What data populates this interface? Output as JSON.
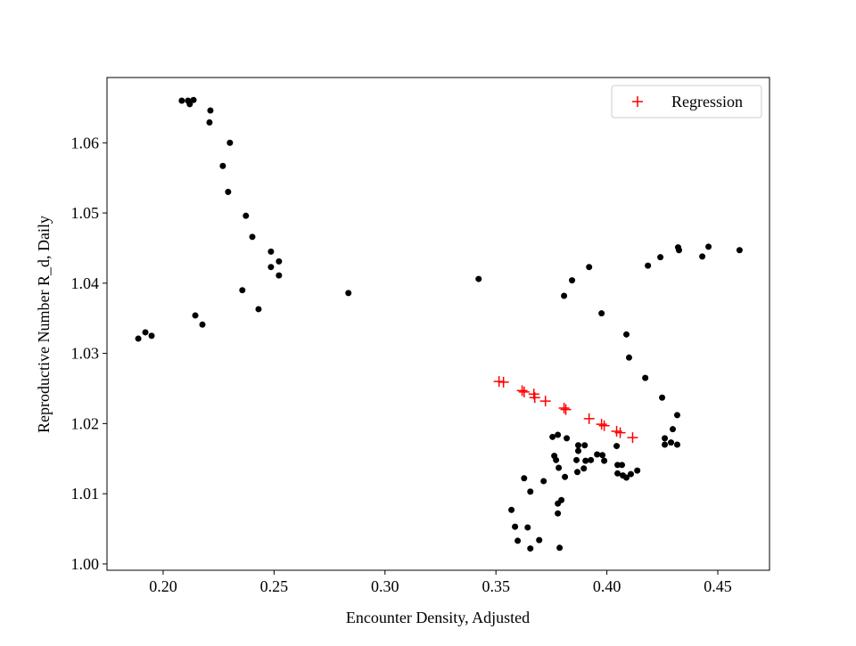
{
  "chart_data": {
    "type": "scatter",
    "xlabel": "Encounter Density, Adjusted",
    "ylabel": "Reproductive Number R_d, Daily",
    "xlim": [
      0.1747,
      0.4733
    ],
    "ylim": [
      0.9991,
      1.0693
    ],
    "xticks": [
      {
        "value": 0.2,
        "label": "0.20"
      },
      0.25,
      {
        "value": 0.3,
        "label": "0.30"
      },
      0.35,
      {
        "value": 0.4,
        "label": "0.40"
      },
      0.45
    ],
    "yticks": [
      {
        "value": 1,
        "label": "1.00"
      },
      1.01,
      1.02,
      1.03,
      1.04,
      1.05,
      1.06
    ],
    "legend": "upper right",
    "series": [
      {
        "color": "#000000",
        "marker": "o",
        "x": [
          0.2084,
          0.2112,
          0.2137,
          0.212,
          0.2213,
          0.2209,
          0.2301,
          0.2269,
          0.2293,
          0.2373,
          0.2402,
          0.2486,
          0.2522,
          0.2486,
          0.2522,
          0.2357,
          0.243,
          0.2145,
          0.2177,
          0.1888,
          0.192,
          0.1948,
          0.2835,
          0.3422,
          0.3843,
          0.392,
          0.3807,
          0.3976,
          0.4088,
          0.41,
          0.4173,
          0.4185,
          0.4241,
          0.4321,
          0.4325,
          0.4458,
          0.443,
          0.4598,
          0.4249,
          0.4317,
          0.4297,
          0.4261,
          0.4261,
          0.4289,
          0.4317,
          0.3755,
          0.3779,
          0.3819,
          0.3763,
          0.3871,
          0.3871,
          0.39,
          0.3956,
          0.398,
          0.3863,
          0.3771,
          0.3904,
          0.3928,
          0.3988,
          0.3867,
          0.3896,
          0.4044,
          0.4048,
          0.4068,
          0.4048,
          0.4072,
          0.4088,
          0.4108,
          0.4137,
          0.3627,
          0.3715,
          0.3811,
          0.3783,
          0.3655,
          0.357,
          0.3586,
          0.3643,
          0.3795,
          0.3779,
          0.3779,
          0.3598,
          0.3655,
          0.3695,
          0.3787
        ],
        "values": [
          1.066,
          1.066,
          1.0661,
          1.0655,
          1.0646,
          1.0629,
          1.06,
          1.0567,
          1.053,
          1.0496,
          1.0466,
          1.0445,
          1.0431,
          1.0423,
          1.0411,
          1.039,
          1.0363,
          1.0354,
          1.0341,
          1.0321,
          1.033,
          1.0325,
          1.0386,
          1.0406,
          1.0404,
          1.0423,
          1.0382,
          1.0357,
          1.0327,
          1.0294,
          1.0265,
          1.0425,
          1.0437,
          1.0451,
          1.0447,
          1.0452,
          1.0438,
          1.0447,
          1.0237,
          1.0212,
          1.0192,
          1.0179,
          1.017,
          1.0173,
          1.017,
          1.0181,
          1.0184,
          1.0179,
          1.0154,
          1.0169,
          1.0161,
          1.0169,
          1.0156,
          1.0155,
          1.0148,
          1.0148,
          1.0147,
          1.0148,
          1.0147,
          1.0131,
          1.0136,
          1.0168,
          1.0141,
          1.0141,
          1.0129,
          1.0126,
          1.0123,
          1.0128,
          1.0133,
          1.0122,
          1.0118,
          1.0124,
          1.0137,
          1.0103,
          1.0077,
          1.0053,
          1.0052,
          1.0091,
          1.0086,
          1.0072,
          1.0033,
          1.0022,
          1.0034,
          1.0023
        ]
      },
      {
        "name": "Regression",
        "color": "#ff0000",
        "marker": "+",
        "x": [
          0.3514,
          0.3534,
          0.3618,
          0.3627,
          0.3671,
          0.3675,
          0.3723,
          0.3807,
          0.3815,
          0.392,
          0.3976,
          0.3988,
          0.4044,
          0.406,
          0.4116
        ],
        "values": [
          1.026,
          1.0259,
          1.0247,
          1.0245,
          1.0242,
          1.0237,
          1.0232,
          1.0222,
          1.022,
          1.0207,
          1.0199,
          1.0197,
          1.0189,
          1.0187,
          1.018
        ]
      }
    ]
  }
}
